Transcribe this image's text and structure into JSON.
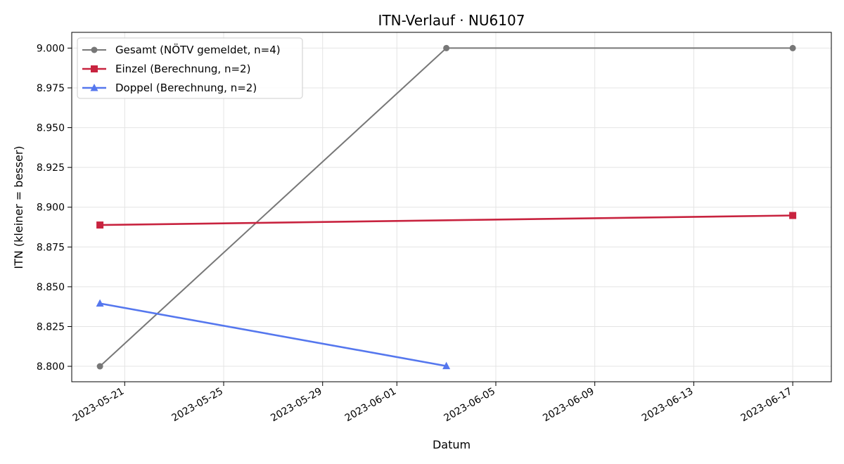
{
  "chart_data": {
    "type": "line",
    "title": "ITN-Verlauf · NU6107",
    "xlabel": "Datum",
    "ylabel": "ITN  (kleiner = besser)",
    "x_type": "date",
    "xlim": [
      "2023-05-18",
      "2023-06-18"
    ],
    "ylim": [
      8.79,
      9.01
    ],
    "x_ticks": [
      "2023-05-21",
      "2023-05-25",
      "2023-05-29",
      "2023-06-01",
      "2023-06-05",
      "2023-06-09",
      "2023-06-13",
      "2023-06-17"
    ],
    "y_ticks": [
      "8.800",
      "8.825",
      "8.850",
      "8.875",
      "8.900",
      "8.925",
      "8.950",
      "8.975",
      "9.000"
    ],
    "grid": true,
    "legend_position": "top-left",
    "series": [
      {
        "name": "Gesamt (NÖTV gemeldet, n=4)",
        "color": "#777777",
        "marker": "circle",
        "x": [
          "2023-05-20",
          "2023-06-03",
          "2023-06-17"
        ],
        "y": [
          8.8,
          9.0,
          9.0
        ]
      },
      {
        "name": "Einzel (Berechnung, n=2)",
        "color": "#c8233f",
        "marker": "square",
        "x": [
          "2023-05-20",
          "2023-06-17"
        ],
        "y": [
          8.8888,
          8.8948
        ]
      },
      {
        "name": "Doppel (Berechnung, n=2)",
        "color": "#5577ee",
        "marker": "triangle",
        "x": [
          "2023-05-20",
          "2023-06-03"
        ],
        "y": [
          8.8395,
          8.8002
        ]
      }
    ]
  }
}
